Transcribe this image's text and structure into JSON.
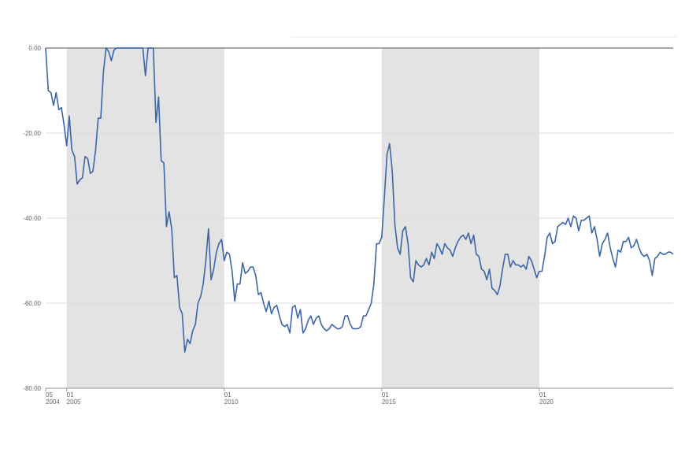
{
  "chart_data": {
    "type": "line",
    "x": [
      "2004-05",
      "2004-06",
      "2004-07",
      "2004-08",
      "2004-09",
      "2004-10",
      "2004-11",
      "2004-12",
      "2005-01",
      "2005-02",
      "2005-03",
      "2005-04",
      "2005-05",
      "2005-06",
      "2005-07",
      "2005-08",
      "2005-09",
      "2005-10",
      "2005-11",
      "2005-12",
      "2006-01",
      "2006-02",
      "2006-03",
      "2006-04",
      "2006-05",
      "2006-06",
      "2006-07",
      "2006-08",
      "2006-09",
      "2006-10",
      "2006-11",
      "2006-12",
      "2007-01",
      "2007-02",
      "2007-03",
      "2007-04",
      "2007-05",
      "2007-06",
      "2007-07",
      "2007-08",
      "2007-09",
      "2007-10",
      "2007-11",
      "2007-12",
      "2008-01",
      "2008-02",
      "2008-03",
      "2008-04",
      "2008-05",
      "2008-06",
      "2008-07",
      "2008-08",
      "2008-09",
      "2008-10",
      "2008-11",
      "2008-12",
      "2009-01",
      "2009-02",
      "2009-03",
      "2009-04",
      "2009-05",
      "2009-06",
      "2009-07",
      "2009-08",
      "2009-09",
      "2009-10",
      "2009-11",
      "2009-12",
      "2010-01",
      "2010-02",
      "2010-03",
      "2010-04",
      "2010-05",
      "2010-06",
      "2010-07",
      "2010-08",
      "2010-09",
      "2010-10",
      "2010-11",
      "2010-12",
      "2011-01",
      "2011-02",
      "2011-03",
      "2011-04",
      "2011-05",
      "2011-06",
      "2011-07",
      "2011-08",
      "2011-09",
      "2011-10",
      "2011-11",
      "2011-12",
      "2012-01",
      "2012-02",
      "2012-03",
      "2012-04",
      "2012-05",
      "2012-06",
      "2012-07",
      "2012-08",
      "2012-09",
      "2012-10",
      "2012-11",
      "2012-12",
      "2013-01",
      "2013-02",
      "2013-03",
      "2013-04",
      "2013-05",
      "2013-06",
      "2013-07",
      "2013-08",
      "2013-09",
      "2013-10",
      "2013-11",
      "2013-12",
      "2014-01",
      "2014-02",
      "2014-03",
      "2014-04",
      "2014-05",
      "2014-06",
      "2014-07",
      "2014-08",
      "2014-09",
      "2014-10",
      "2014-11",
      "2014-12",
      "2015-01",
      "2015-02",
      "2015-03",
      "2015-04",
      "2015-05",
      "2015-06",
      "2015-07",
      "2015-08",
      "2015-09",
      "2015-10",
      "2015-11",
      "2015-12",
      "2016-01",
      "2016-02",
      "2016-03",
      "2016-04",
      "2016-05",
      "2016-06",
      "2016-07",
      "2016-08",
      "2016-09",
      "2016-10",
      "2016-11",
      "2016-12",
      "2017-01",
      "2017-02",
      "2017-03",
      "2017-04",
      "2017-05",
      "2017-06",
      "2017-07",
      "2017-08",
      "2017-09",
      "2017-10",
      "2017-11",
      "2017-12",
      "2018-01",
      "2018-02",
      "2018-03",
      "2018-04",
      "2018-05",
      "2018-06",
      "2018-07",
      "2018-08",
      "2018-09",
      "2018-10",
      "2018-11",
      "2018-12",
      "2019-01",
      "2019-02",
      "2019-03",
      "2019-04",
      "2019-05",
      "2019-06",
      "2019-07",
      "2019-08",
      "2019-09",
      "2019-10",
      "2019-11",
      "2019-12",
      "2020-01",
      "2020-02",
      "2020-03",
      "2020-04",
      "2020-05",
      "2020-06",
      "2020-07",
      "2020-08",
      "2020-09",
      "2020-10",
      "2020-11",
      "2020-12",
      "2021-01",
      "2021-02",
      "2021-03",
      "2021-04",
      "2021-05",
      "2021-06",
      "2021-07",
      "2021-08",
      "2021-09",
      "2021-10",
      "2021-11",
      "2021-12",
      "2022-01",
      "2022-02",
      "2022-03",
      "2022-04",
      "2022-05",
      "2022-06",
      "2022-07",
      "2022-08",
      "2022-09",
      "2022-10",
      "2022-11",
      "2022-12",
      "2023-01",
      "2023-02",
      "2023-03",
      "2023-04",
      "2023-05",
      "2023-06",
      "2023-07",
      "2023-08",
      "2023-09",
      "2023-10",
      "2023-11",
      "2023-12",
      "2024-01",
      "2024-02",
      "2024-03",
      "2024-04"
    ],
    "series": [
      {
        "color": "#3b67a8",
        "values": [
          0,
          -10,
          -10.5,
          -13.5,
          -10.5,
          -14.5,
          -14,
          -18,
          -23,
          -16,
          -24,
          -25.5,
          -32,
          -31,
          -30.5,
          -25.5,
          -26,
          -29.5,
          -29,
          -24,
          -16.5,
          -16.5,
          -5.5,
          0,
          -0.8,
          -3,
          -0.5,
          0,
          0,
          0,
          0,
          0,
          0,
          0,
          0,
          0,
          0,
          0,
          -6.5,
          0,
          0,
          0,
          -17.5,
          -11.5,
          -26.5,
          -27,
          -42,
          -38.5,
          -42.5,
          -54,
          -53.5,
          -61,
          -62.5,
          -71.5,
          -68.5,
          -69.5,
          -66.5,
          -65,
          -60,
          -58.5,
          -55.5,
          -50,
          -42.5,
          -54.5,
          -52,
          -48,
          -46,
          -45,
          -50,
          -48,
          -48.5,
          -52.5,
          -59.5,
          -55.5,
          -55.5,
          -50.5,
          -53,
          -52.5,
          -51.5,
          -51.5,
          -53.5,
          -58,
          -57.5,
          -60,
          -62,
          -59.5,
          -62.5,
          -61,
          -60.5,
          -63,
          -65,
          -65.5,
          -65,
          -67,
          -61,
          -60.5,
          -63.5,
          -61.5,
          -67,
          -66,
          -64,
          -63,
          -65,
          -63.5,
          -63,
          -65,
          -66,
          -66.5,
          -66,
          -65,
          -65.5,
          -66,
          -66,
          -65.5,
          -63,
          -63,
          -65,
          -66,
          -66,
          -66,
          -65.5,
          -63,
          -63,
          -61.5,
          -60,
          -55.5,
          -46,
          -46,
          -44.5,
          -35,
          -25,
          -22.5,
          -29,
          -41.5,
          -47,
          -48.5,
          -43,
          -42,
          -46,
          -54,
          -55,
          -50,
          -51,
          -51.5,
          -51,
          -49.5,
          -51,
          -48,
          -49.5,
          -46,
          -47,
          -48.5,
          -46,
          -47,
          -47.5,
          -49,
          -47,
          -45.5,
          -44.5,
          -44,
          -45,
          -43.5,
          -46,
          -44,
          -48.5,
          -49,
          -52,
          -52.5,
          -54.5,
          -52,
          -56.5,
          -57,
          -58,
          -56,
          -52,
          -48.5,
          -48.5,
          -51.5,
          -50,
          -51,
          -51,
          -51.5,
          -51,
          -52,
          -49,
          -50,
          -52,
          -54,
          -52.5,
          -52.5,
          -49,
          -44.5,
          -43.5,
          -46,
          -45.5,
          -42,
          -41.5,
          -41,
          -41.5,
          -40,
          -42,
          -39.5,
          -40,
          -43,
          -40.5,
          -40.5,
          -40,
          -39.5,
          -43.5,
          -42,
          -45,
          -49,
          -46,
          -45,
          -43.5,
          -47,
          -49.5,
          -51.5,
          -47.5,
          -48,
          -45.5,
          -45.5,
          -44.5,
          -47,
          -46.5,
          -45,
          -47,
          -48.5,
          -49,
          -48.5,
          -50,
          -53.5,
          -49.5,
          -49,
          -48,
          -48.5,
          -48.5,
          -48,
          -48,
          -48.5
        ]
      }
    ],
    "xlim": [
      "2004-05",
      "2024-04"
    ],
    "xticks": [
      {
        "value": "2004-05",
        "label": "05",
        "year_label": "2004"
      },
      {
        "value": "2005-01",
        "label": "01",
        "year_label": "2005"
      },
      {
        "value": "2010-01",
        "label": "01",
        "year_label": "2010"
      },
      {
        "value": "2015-01",
        "label": "01",
        "year_label": "2015"
      },
      {
        "value": "2020-01",
        "label": "01",
        "year_label": "2020"
      }
    ],
    "ylim": [
      -80,
      0
    ],
    "yticks": [
      {
        "value": -80,
        "label": "-80.00"
      },
      {
        "value": -60,
        "label": "-60.00"
      },
      {
        "value": -40,
        "label": "-40.00"
      },
      {
        "value": -20,
        "label": "-20.00"
      },
      {
        "value": 0,
        "label": "0.00"
      }
    ],
    "grid": true
  }
}
